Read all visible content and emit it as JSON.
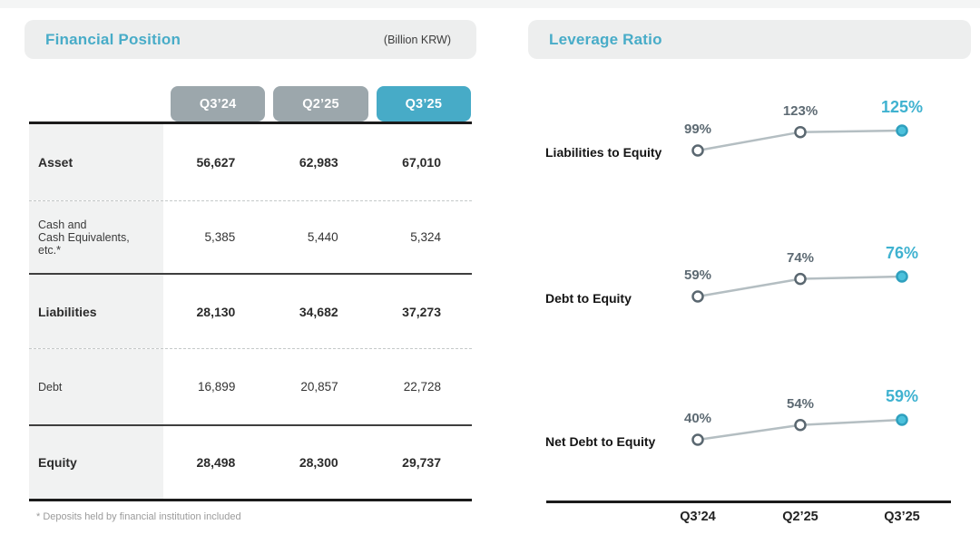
{
  "slide": {
    "left_panel": {
      "title": "Financial Position",
      "unit_label": "(Billion KRW)",
      "columns": [
        "Q3’24",
        "Q2’25",
        "Q3’25"
      ],
      "highlighted_column": "Q3’25",
      "rows": [
        {
          "label": "Asset",
          "values": [
            "56,627",
            "62,983",
            "67,010"
          ],
          "emphasis": true
        },
        {
          "label": "Cash and\nCash Equivalents,\netc.*",
          "values": [
            "5,385",
            "5,440",
            "5,324"
          ],
          "emphasis": false
        },
        {
          "label": "Liabilities",
          "values": [
            "28,130",
            "34,682",
            "37,273"
          ],
          "emphasis": true
        },
        {
          "label": "Debt",
          "values": [
            "16,899",
            "20,857",
            "22,728"
          ],
          "emphasis": false
        },
        {
          "label": "Equity",
          "values": [
            "28,498",
            "28,300",
            "29,737"
          ],
          "emphasis": true
        }
      ],
      "footnote": "* Deposits held by financial institution included"
    },
    "right_panel": {
      "title": "Leverage Ratio",
      "x_labels": [
        "Q3’24",
        "Q2’25",
        "Q3’25"
      ],
      "ratios": [
        {
          "name": "Liabilities to Equity",
          "labels": [
            "99%",
            "123%",
            "125%"
          ]
        },
        {
          "name": "Debt to Equity",
          "labels": [
            "59%",
            "74%",
            "76%"
          ]
        },
        {
          "name": "Net Debt to Equity",
          "labels": [
            "40%",
            "54%",
            "59%"
          ]
        }
      ]
    }
  },
  "chart_data": [
    {
      "type": "table",
      "title": "Financial Position",
      "unit": "Billion KRW",
      "columns": [
        "Q3'24",
        "Q2'25",
        "Q3'25"
      ],
      "rows": [
        {
          "label": "Asset",
          "values": [
            56627,
            62983,
            67010
          ]
        },
        {
          "label": "Cash and Cash Equivalents, etc.*",
          "values": [
            5385,
            5440,
            5324
          ]
        },
        {
          "label": "Liabilities",
          "values": [
            28130,
            34682,
            37273
          ]
        },
        {
          "label": "Debt",
          "values": [
            16899,
            20857,
            22728
          ]
        },
        {
          "label": "Equity",
          "values": [
            28498,
            28300,
            29737
          ]
        }
      ],
      "footnote": "* Deposits held by financial institution included"
    },
    {
      "type": "line",
      "title": "Leverage Ratio",
      "x": [
        "Q3'24",
        "Q2'25",
        "Q3'25"
      ],
      "unit": "%",
      "series": [
        {
          "name": "Liabilities to Equity",
          "values": [
            99,
            123,
            125
          ]
        },
        {
          "name": "Debt to Equity",
          "values": [
            59,
            74,
            76
          ]
        },
        {
          "name": "Net Debt to Equity",
          "values": [
            40,
            54,
            59
          ]
        }
      ],
      "legend_position": "left-of-line",
      "grid": false,
      "highlight_last_point": true
    }
  ],
  "colors": {
    "accent_teal": "#48acc8",
    "tab_gray": "#9ca7ac",
    "tab_teal": "#47abc7",
    "header_bar_bg": "#edeeee",
    "label_column_bg": "#f1f2f2",
    "line_gray": "#b4bec2",
    "marker_stroke_gray": "#5a6770",
    "marker_fill_teal": "#4cc1dc",
    "marker_stroke_teal": "#2fa0be",
    "value_label_gray": "#5d6a73",
    "value_label_teal": "#3fb2d0",
    "rule_black": "#1b1b1b"
  }
}
